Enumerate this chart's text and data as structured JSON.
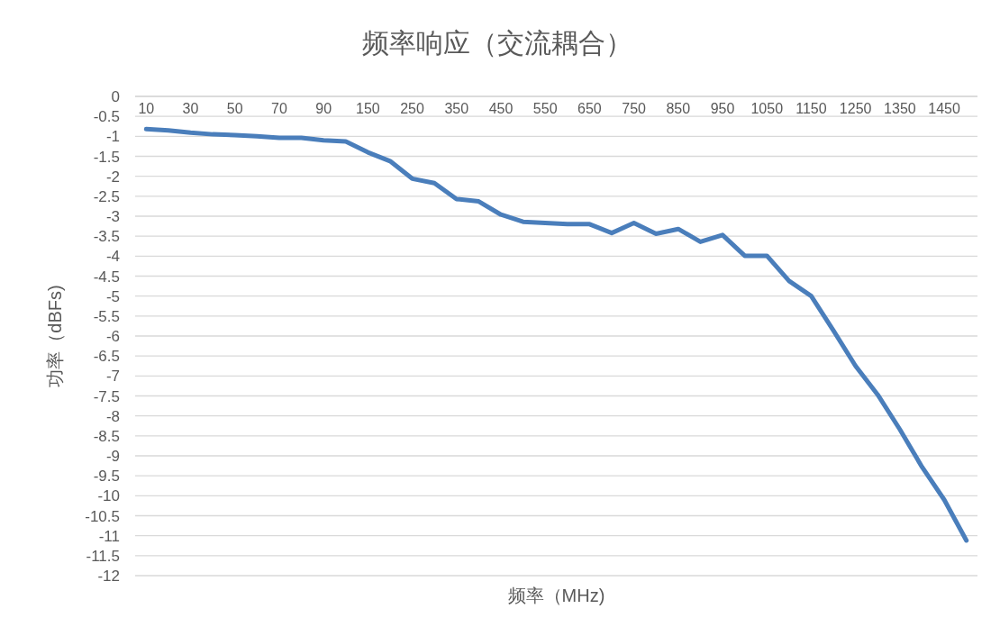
{
  "chart_data": {
    "type": "line",
    "title": "频率响应（交流耦合）",
    "xlabel": "频率（MHz)",
    "ylabel": "功率（dBFs)",
    "categories": [
      "10",
      null,
      "30",
      null,
      "50",
      null,
      "70",
      null,
      "90",
      null,
      "150",
      null,
      "250",
      null,
      "350",
      null,
      "450",
      null,
      "550",
      null,
      "650",
      null,
      "750",
      null,
      "850",
      null,
      "950",
      null,
      "1050",
      null,
      "1150",
      null,
      "1250",
      null,
      "1350",
      null,
      "1450",
      null
    ],
    "series": [
      {
        "color": "#4a7ebb",
        "values": [
          -0.82,
          -0.85,
          -0.91,
          -0.95,
          -0.97,
          -1.0,
          -1.04,
          -1.04,
          -1.1,
          -1.13,
          -1.4,
          -1.62,
          -2.06,
          -2.17,
          -2.57,
          -2.63,
          -2.96,
          -3.14,
          -3.17,
          -3.2,
          -3.2,
          -3.42,
          -3.17,
          -3.44,
          -3.32,
          -3.64,
          -3.47,
          -3.99,
          -3.99,
          -4.62,
          -5.0,
          -5.86,
          -6.75,
          -7.47,
          -8.34,
          -9.28,
          -10.1,
          -11.12
        ]
      }
    ],
    "ylim": [
      -12,
      0
    ],
    "yticks": [
      0,
      -0.5,
      -1,
      -1.5,
      -2,
      -2.5,
      -3,
      -3.5,
      -4,
      -4.5,
      -5,
      -5.5,
      -6,
      -6.5,
      -7,
      -7.5,
      -8,
      -8.5,
      -9,
      -9.5,
      -10,
      -10.5,
      -11,
      -11.5,
      -12
    ],
    "grid": "y"
  }
}
